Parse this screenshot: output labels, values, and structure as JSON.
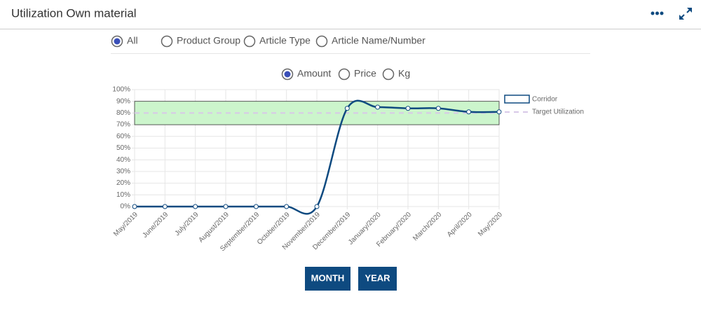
{
  "header": {
    "title": "Utilization Own material"
  },
  "filters": {
    "options": [
      "All",
      "Product Group",
      "Article Type",
      "Article Name/Number"
    ],
    "selected": 0
  },
  "measures": {
    "options": [
      "Amount",
      "Price",
      "Kg"
    ],
    "selected": 0
  },
  "chart_data": {
    "type": "line",
    "categories": [
      "May/2019",
      "June/2019",
      "July/2019",
      "August/2019",
      "September/2019",
      "October/2019",
      "November/2019",
      "December/2019",
      "January/2020",
      "February/2020",
      "March/2020",
      "April/2020",
      "May/2020"
    ],
    "values": [
      0,
      0,
      0,
      0,
      0,
      0,
      0,
      84,
      85,
      84,
      84,
      81,
      81
    ],
    "color": "#0e4a80",
    "corridor": {
      "name": "Corridor",
      "range": [
        70,
        90
      ],
      "color": "#ccf5cc"
    },
    "target": {
      "name": "Target Utilization",
      "value": 80,
      "color": "#d8c8e8"
    },
    "ylim": [
      0,
      100
    ],
    "yticks": [
      {
        "value": 0,
        "label": "0%"
      },
      {
        "value": 10,
        "label": "10%"
      },
      {
        "value": 20,
        "label": "20%"
      },
      {
        "value": 30,
        "label": "30%"
      },
      {
        "value": 40,
        "label": "40%"
      },
      {
        "value": 50,
        "label": "50%"
      },
      {
        "value": 60,
        "label": "60%"
      },
      {
        "value": 70,
        "label": "70%"
      },
      {
        "value": 80,
        "label": "80%"
      },
      {
        "value": 90,
        "label": "90%"
      },
      {
        "value": 100,
        "label": "100%"
      }
    ],
    "grid": true
  },
  "buttons": [
    "MONTH",
    "YEAR"
  ]
}
